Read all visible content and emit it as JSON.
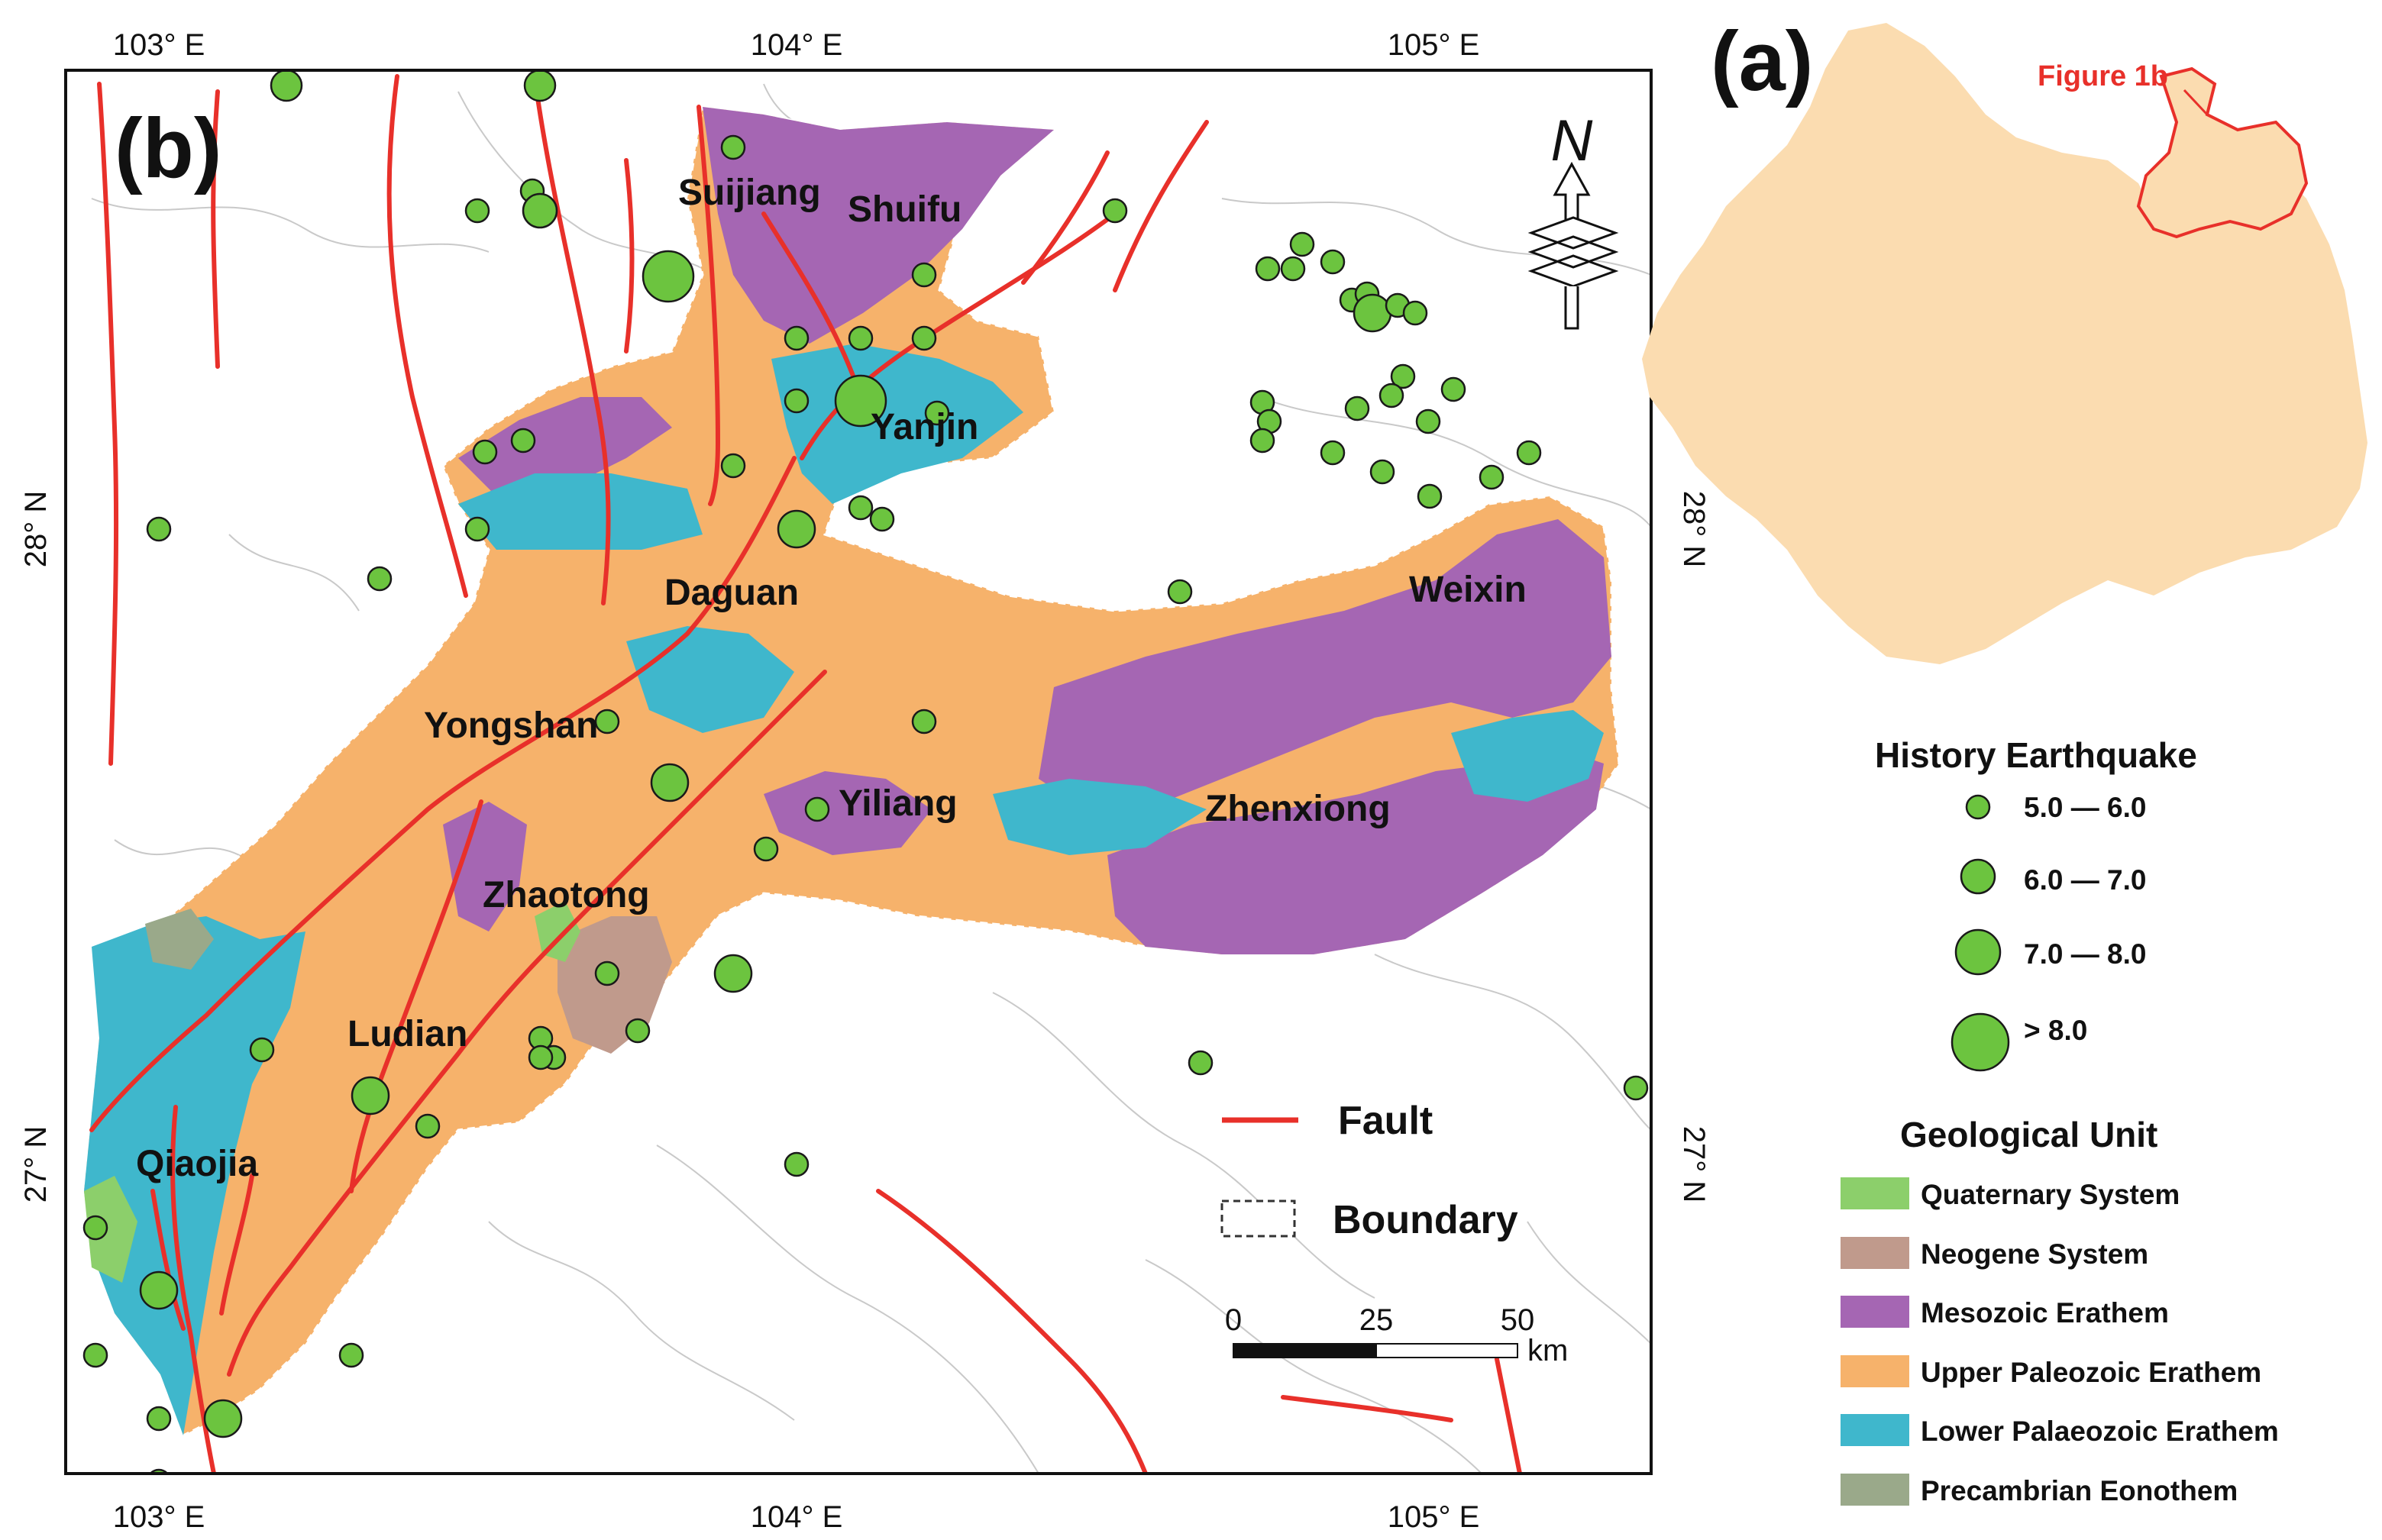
{
  "colors": {
    "quaternary": "#8ccf6b",
    "neogene": "#c09a8c",
    "mesozoic": "#a566b3",
    "upper_paleozoic": "#f6b26b",
    "lower_paleozoic": "#3fb7cc",
    "precambrian": "#9aa98a",
    "fault": "#e8302a",
    "quake": "#6cc43f",
    "yunnan": "#fbdcb0",
    "figure1b": "#e8302a"
  },
  "panel_a": {
    "label": "(a)",
    "inset_label": "Figure 1b"
  },
  "panel_b": {
    "label": "(b)"
  },
  "axes": {
    "x_ticks": [
      "103° E",
      "104° E",
      "105° E"
    ],
    "y_ticks": [
      "28° N",
      "27° N"
    ]
  },
  "places": [
    "Suijiang",
    "Shuifu",
    "Yanjin",
    "Daguan",
    "Weixin",
    "Yongshan",
    "Yiliang",
    "Zhenxiong",
    "Zhaotong",
    "Ludian",
    "Qiaojia"
  ],
  "north_arrow": {
    "letter": "N"
  },
  "map_legend": {
    "fault": "Fault",
    "boundary": "Boundary"
  },
  "scale_bar": {
    "ticks": [
      "0",
      "25",
      "50"
    ],
    "unit": "km"
  },
  "earthquake_legend": {
    "title": "History Earthquake",
    "classes": [
      "5.0 — 6.0",
      "6.0 — 7.0",
      "7.0 — 8.0",
      "> 8.0"
    ]
  },
  "geology_legend": {
    "title": "Geological Unit",
    "units": [
      {
        "label": "Quaternary System",
        "color": "#8ccf6b"
      },
      {
        "label": "Neogene System",
        "color": "#c09a8c"
      },
      {
        "label": "Mesozoic Erathem",
        "color": "#a566b3"
      },
      {
        "label": "Upper Paleozoic Erathem",
        "color": "#f6b26b"
      },
      {
        "label": "Lower Palaeozoic Erathem",
        "color": "#3fb7cc"
      },
      {
        "label": "Precambrian Eonothem",
        "color": "#9aa98a"
      }
    ]
  }
}
